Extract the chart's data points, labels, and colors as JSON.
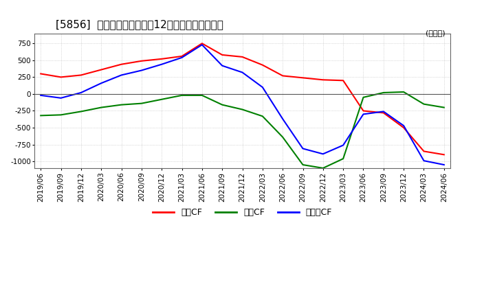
{
  "title": "[5856]  キャッシュフローの12か月移動合計の推移",
  "ylabel": "(百万円)",
  "ylim": [
    -1100,
    900
  ],
  "yticks": [
    750,
    500,
    250,
    0,
    -250,
    -500,
    -750,
    -1000
  ],
  "x_labels": [
    "2019/06",
    "2019/09",
    "2019/12",
    "2020/03",
    "2020/06",
    "2020/09",
    "2020/12",
    "2021/03",
    "2021/06",
    "2021/09",
    "2021/12",
    "2022/03",
    "2022/06",
    "2022/09",
    "2022/12",
    "2023/03",
    "2023/06",
    "2023/09",
    "2023/12",
    "2024/03",
    "2024/06"
  ],
  "operating_cf": [
    300,
    250,
    280,
    360,
    440,
    490,
    520,
    560,
    750,
    580,
    550,
    430,
    270,
    240,
    210,
    200,
    -250,
    -280,
    -500,
    -850,
    -900
  ],
  "investing_cf": [
    -320,
    -310,
    -260,
    -200,
    -160,
    -140,
    -80,
    -20,
    -20,
    -160,
    -230,
    -330,
    -640,
    -1050,
    -1100,
    -960,
    -50,
    20,
    30,
    -150,
    -200
  ],
  "free_cf": [
    -20,
    -60,
    20,
    160,
    280,
    350,
    440,
    540,
    730,
    420,
    320,
    100,
    -370,
    -810,
    -890,
    -760,
    -300,
    -260,
    -470,
    -990,
    -1050
  ],
  "colors": {
    "operating": "#ff0000",
    "investing": "#008000",
    "free": "#0000ff"
  },
  "legend_labels": [
    "営業CF",
    "投資CF",
    "フリーCF"
  ],
  "background_color": "#ffffff",
  "plot_bg_color": "#ffffff",
  "grid_color": "#aaaaaa",
  "title_fontsize": 11,
  "tick_fontsize": 7.5
}
